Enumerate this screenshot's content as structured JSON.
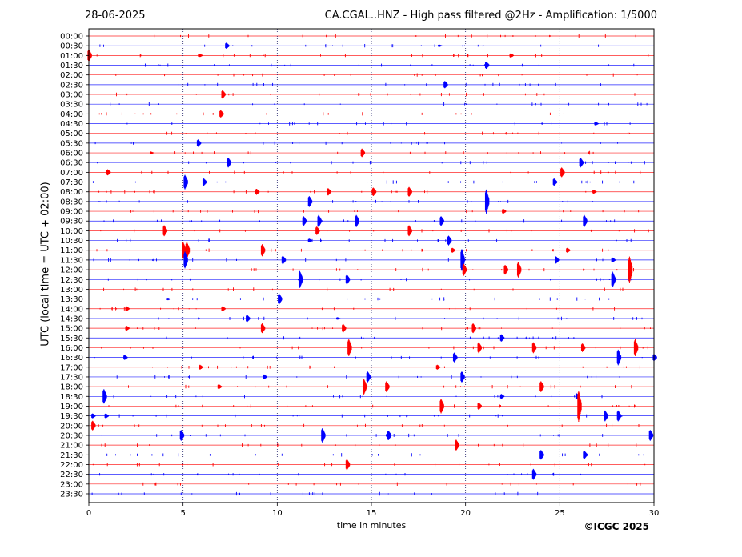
{
  "header": {
    "date": "28-06-2025",
    "title": "CA.CGAL..HNZ - High pass filtered @2Hz - Amplification: 1/5000"
  },
  "copyright": "©ICGC 2025",
  "colors": {
    "red": "#ff0000",
    "blue": "#0000ff"
  },
  "chart_data": {
    "type": "line",
    "title": "CA.CGAL..HNZ - High pass filtered @2Hz - Amplification: 1/5000",
    "xlabel": "time in minutes",
    "ylabel": "UTC (local time = UTC + 02:00)",
    "xlim": [
      0,
      30
    ],
    "xticks": [
      0,
      5,
      10,
      15,
      20,
      25,
      30
    ],
    "grid_x": true,
    "row_colors_alternate": [
      "red",
      "blue"
    ],
    "rows": [
      "00:00",
      "00:30",
      "01:00",
      "01:30",
      "02:00",
      "02:30",
      "03:00",
      "03:30",
      "04:00",
      "04:30",
      "05:00",
      "05:30",
      "06:00",
      "06:30",
      "07:00",
      "07:30",
      "08:00",
      "08:30",
      "09:00",
      "09:30",
      "10:00",
      "10:30",
      "11:00",
      "11:30",
      "12:00",
      "12:30",
      "13:00",
      "13:30",
      "14:00",
      "14:30",
      "15:00",
      "15:30",
      "16:00",
      "16:30",
      "17:00",
      "17:30",
      "18:00",
      "18:30",
      "19:00",
      "19:30",
      "20:00",
      "20:30",
      "21:00",
      "21:30",
      "22:00",
      "22:30",
      "23:00",
      "23:30"
    ],
    "events": [
      {
        "row": "00:30",
        "minute": 7.3,
        "amplitude": 0.5
      },
      {
        "row": "00:30",
        "minute": 18.6,
        "amplitude": 0.2
      },
      {
        "row": "01:00",
        "minute": 0.0,
        "amplitude": 1.0
      },
      {
        "row": "01:00",
        "minute": 5.9,
        "amplitude": 0.25
      },
      {
        "row": "01:00",
        "minute": 22.4,
        "amplitude": 0.35
      },
      {
        "row": "01:30",
        "minute": 21.1,
        "amplitude": 0.6
      },
      {
        "row": "02:30",
        "minute": 18.9,
        "amplitude": 0.6
      },
      {
        "row": "03:00",
        "minute": 7.1,
        "amplitude": 0.7
      },
      {
        "row": "04:00",
        "minute": 7.0,
        "amplitude": 0.6
      },
      {
        "row": "04:30",
        "minute": 26.9,
        "amplitude": 0.3
      },
      {
        "row": "05:30",
        "minute": 5.8,
        "amplitude": 0.6
      },
      {
        "row": "06:00",
        "minute": 3.3,
        "amplitude": 0.2
      },
      {
        "row": "06:00",
        "minute": 14.5,
        "amplitude": 0.7
      },
      {
        "row": "06:30",
        "minute": 7.4,
        "amplitude": 0.8
      },
      {
        "row": "06:30",
        "minute": 26.1,
        "amplitude": 0.8
      },
      {
        "row": "07:00",
        "minute": 1.0,
        "amplitude": 0.5
      },
      {
        "row": "07:00",
        "minute": 25.1,
        "amplitude": 0.8
      },
      {
        "row": "07:30",
        "minute": 5.1,
        "amplitude": 1.2
      },
      {
        "row": "07:30",
        "minute": 6.1,
        "amplitude": 0.6
      },
      {
        "row": "07:30",
        "minute": 24.7,
        "amplitude": 0.6
      },
      {
        "row": "08:00",
        "minute": 8.9,
        "amplitude": 0.5
      },
      {
        "row": "08:00",
        "minute": 12.7,
        "amplitude": 0.6
      },
      {
        "row": "08:00",
        "minute": 15.1,
        "amplitude": 0.7
      },
      {
        "row": "08:00",
        "minute": 17.0,
        "amplitude": 0.8
      },
      {
        "row": "08:00",
        "minute": 26.8,
        "amplitude": 0.3
      },
      {
        "row": "08:30",
        "minute": 11.7,
        "amplitude": 0.9
      },
      {
        "row": "08:30",
        "minute": 21.1,
        "amplitude": 2.0
      },
      {
        "row": "09:00",
        "minute": 22.0,
        "amplitude": 0.4
      },
      {
        "row": "09:30",
        "minute": 11.4,
        "amplitude": 0.8
      },
      {
        "row": "09:30",
        "minute": 12.2,
        "amplitude": 1.0
      },
      {
        "row": "09:30",
        "minute": 14.2,
        "amplitude": 1.0
      },
      {
        "row": "09:30",
        "minute": 18.7,
        "amplitude": 0.8
      },
      {
        "row": "09:30",
        "minute": 26.3,
        "amplitude": 1.0
      },
      {
        "row": "10:00",
        "minute": 4.0,
        "amplitude": 0.9
      },
      {
        "row": "10:00",
        "minute": 12.1,
        "amplitude": 0.7
      },
      {
        "row": "10:00",
        "minute": 17.0,
        "amplitude": 0.9
      },
      {
        "row": "10:30",
        "minute": 11.7,
        "amplitude": 0.3
      },
      {
        "row": "10:30",
        "minute": 19.1,
        "amplitude": 0.8
      },
      {
        "row": "11:00",
        "minute": 5.0,
        "amplitude": 1.4
      },
      {
        "row": "11:00",
        "minute": 5.2,
        "amplitude": 1.4
      },
      {
        "row": "11:00",
        "minute": 9.2,
        "amplitude": 1.0
      },
      {
        "row": "11:00",
        "minute": 19.3,
        "amplitude": 0.4
      },
      {
        "row": "11:00",
        "minute": 25.4,
        "amplitude": 0.4
      },
      {
        "row": "11:30",
        "minute": 5.1,
        "amplitude": 1.4
      },
      {
        "row": "11:30",
        "minute": 10.3,
        "amplitude": 0.7
      },
      {
        "row": "11:30",
        "minute": 19.8,
        "amplitude": 1.8
      },
      {
        "row": "11:30",
        "minute": 24.8,
        "amplitude": 0.6
      },
      {
        "row": "11:30",
        "minute": 27.8,
        "amplitude": 0.4
      },
      {
        "row": "12:00",
        "minute": 19.9,
        "amplitude": 1.0
      },
      {
        "row": "12:00",
        "minute": 22.1,
        "amplitude": 0.8
      },
      {
        "row": "12:00",
        "minute": 22.8,
        "amplitude": 1.3
      },
      {
        "row": "12:00",
        "minute": 28.7,
        "amplitude": 2.2
      },
      {
        "row": "12:30",
        "minute": 11.2,
        "amplitude": 1.4
      },
      {
        "row": "12:30",
        "minute": 13.7,
        "amplitude": 0.8
      },
      {
        "row": "12:30",
        "minute": 27.8,
        "amplitude": 1.3
      },
      {
        "row": "13:30",
        "minute": 10.1,
        "amplitude": 0.9
      },
      {
        "row": "13:30",
        "minute": 4.2,
        "amplitude": 0.2
      },
      {
        "row": "14:00",
        "minute": 2.0,
        "amplitude": 0.4
      },
      {
        "row": "14:00",
        "minute": 7.1,
        "amplitude": 0.4
      },
      {
        "row": "14:30",
        "minute": 8.4,
        "amplitude": 0.6
      },
      {
        "row": "14:30",
        "minute": 13.2,
        "amplitude": 0.2
      },
      {
        "row": "15:00",
        "minute": 2.0,
        "amplitude": 0.4
      },
      {
        "row": "15:00",
        "minute": 9.2,
        "amplitude": 0.8
      },
      {
        "row": "15:00",
        "minute": 13.5,
        "amplitude": 0.7
      },
      {
        "row": "15:00",
        "minute": 20.4,
        "amplitude": 0.8
      },
      {
        "row": "15:30",
        "minute": 21.9,
        "amplitude": 0.6
      },
      {
        "row": "16:00",
        "minute": 13.8,
        "amplitude": 1.4
      },
      {
        "row": "16:00",
        "minute": 20.7,
        "amplitude": 0.9
      },
      {
        "row": "16:00",
        "minute": 23.6,
        "amplitude": 0.9
      },
      {
        "row": "16:00",
        "minute": 26.2,
        "amplitude": 0.7
      },
      {
        "row": "16:00",
        "minute": 29.0,
        "amplitude": 1.4
      },
      {
        "row": "16:30",
        "minute": 1.9,
        "amplitude": 0.4
      },
      {
        "row": "16:30",
        "minute": 19.4,
        "amplitude": 0.8
      },
      {
        "row": "16:30",
        "minute": 28.1,
        "amplitude": 1.3
      },
      {
        "row": "16:30",
        "minute": 30.0,
        "amplitude": 0.6
      },
      {
        "row": "17:00",
        "minute": 5.9,
        "amplitude": 0.4
      },
      {
        "row": "17:00",
        "minute": 18.5,
        "amplitude": 0.4
      },
      {
        "row": "17:30",
        "minute": 9.3,
        "amplitude": 0.4
      },
      {
        "row": "17:30",
        "minute": 14.8,
        "amplitude": 0.9
      },
      {
        "row": "17:30",
        "minute": 19.8,
        "amplitude": 0.9
      },
      {
        "row": "18:00",
        "minute": 6.9,
        "amplitude": 0.4
      },
      {
        "row": "18:00",
        "minute": 14.6,
        "amplitude": 1.3
      },
      {
        "row": "18:00",
        "minute": 15.8,
        "amplitude": 0.9
      },
      {
        "row": "18:00",
        "minute": 24.0,
        "amplitude": 0.9
      },
      {
        "row": "18:30",
        "minute": 0.8,
        "amplitude": 1.2
      },
      {
        "row": "18:30",
        "minute": 21.9,
        "amplitude": 0.4
      },
      {
        "row": "18:30",
        "minute": 25.9,
        "amplitude": 0.5
      },
      {
        "row": "19:00",
        "minute": 18.7,
        "amplitude": 1.2
      },
      {
        "row": "19:00",
        "minute": 20.7,
        "amplitude": 0.6
      },
      {
        "row": "19:00",
        "minute": 26.0,
        "amplitude": 2.6
      },
      {
        "row": "19:30",
        "minute": 0.2,
        "amplitude": 0.4
      },
      {
        "row": "19:30",
        "minute": 0.9,
        "amplitude": 0.4
      },
      {
        "row": "19:30",
        "minute": 27.4,
        "amplitude": 0.9
      },
      {
        "row": "19:30",
        "minute": 28.1,
        "amplitude": 0.9
      },
      {
        "row": "20:00",
        "minute": 0.2,
        "amplitude": 0.8
      },
      {
        "row": "20:30",
        "minute": 4.9,
        "amplitude": 0.9
      },
      {
        "row": "20:30",
        "minute": 12.4,
        "amplitude": 1.2
      },
      {
        "row": "20:30",
        "minute": 15.9,
        "amplitude": 0.8
      },
      {
        "row": "20:30",
        "minute": 29.8,
        "amplitude": 0.9
      },
      {
        "row": "21:00",
        "minute": 19.5,
        "amplitude": 0.9
      },
      {
        "row": "21:30",
        "minute": 24.0,
        "amplitude": 0.8
      },
      {
        "row": "21:30",
        "minute": 26.3,
        "amplitude": 0.7
      },
      {
        "row": "22:00",
        "minute": 13.7,
        "amplitude": 0.9
      },
      {
        "row": "22:30",
        "minute": 23.6,
        "amplitude": 0.9
      }
    ]
  }
}
